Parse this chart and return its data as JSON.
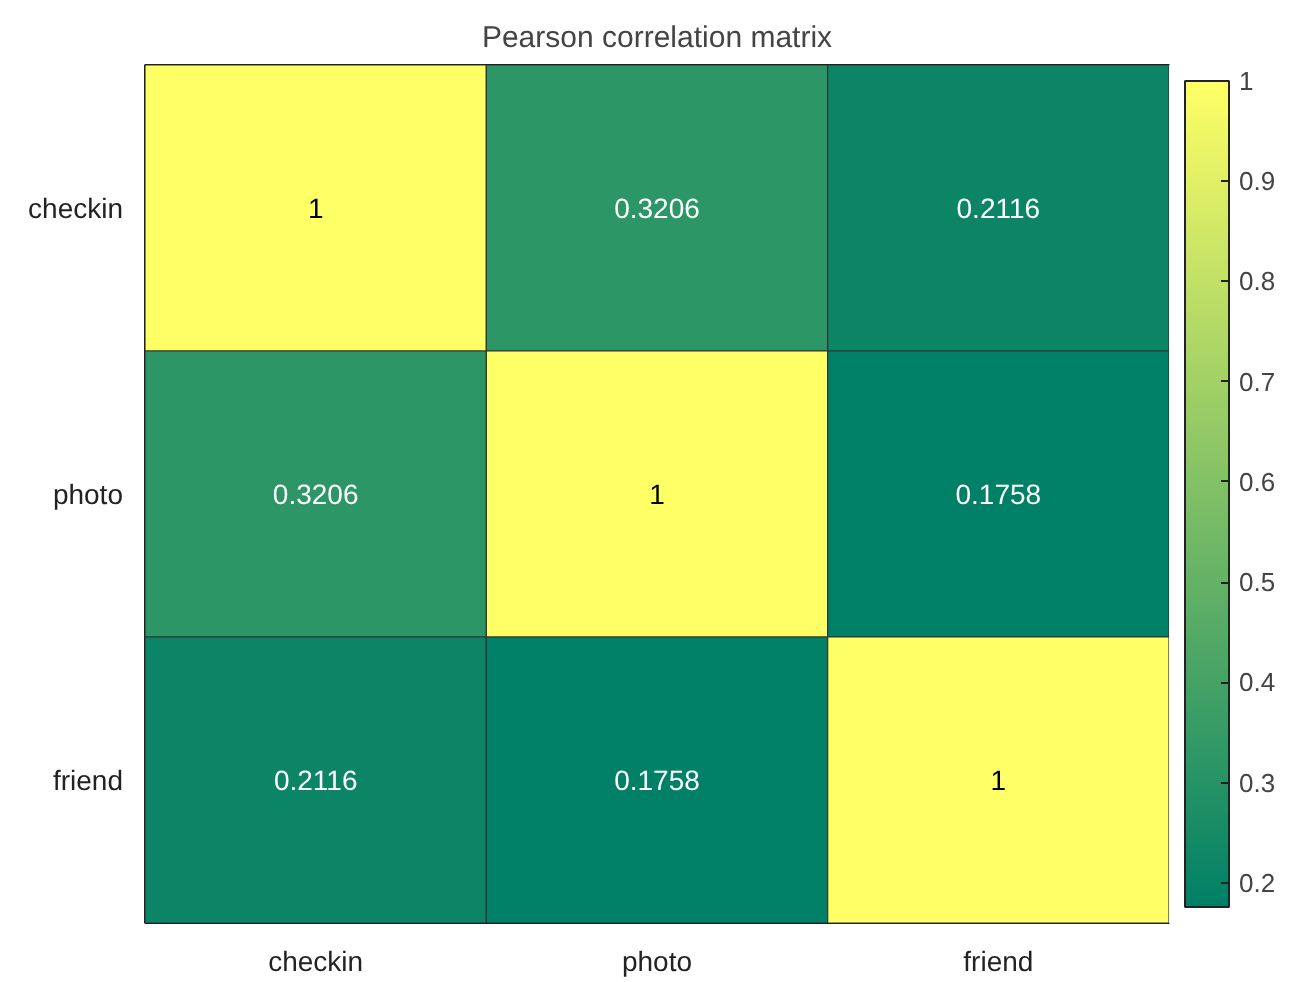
{
  "chart_data": {
    "type": "heatmap",
    "title": "Pearson correlation matrix",
    "categories": [
      "checkin",
      "photo",
      "friend"
    ],
    "y_categories": [
      "checkin",
      "photo",
      "friend"
    ],
    "cells": [
      [
        1,
        0.3206,
        0.2116
      ],
      [
        0.3206,
        1,
        0.1758
      ],
      [
        0.2116,
        0.1758,
        1
      ]
    ],
    "data_labels": true,
    "clim": [
      0.1758,
      1
    ],
    "cticks": [
      0.2,
      0.3,
      0.4,
      0.5,
      0.6,
      0.7,
      0.8,
      0.9,
      1
    ],
    "colors": [
      "#008066",
      "#ffff66"
    ]
  }
}
